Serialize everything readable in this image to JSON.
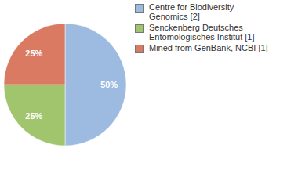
{
  "chart_data": {
    "type": "pie",
    "categories": [
      "Centre for Biodiversity Genomics [2]",
      "Senckenberg Deutsches Entomologisches Institut [1]",
      "Mined from GenBank, NCBI [1]"
    ],
    "values": [
      50,
      25,
      25
    ],
    "colors": [
      "#9dbae0",
      "#a0c56c",
      "#db7a63"
    ],
    "data_labels": true,
    "value_labels": [
      "50%",
      "25%",
      "25%"
    ],
    "legend": "top-right"
  }
}
